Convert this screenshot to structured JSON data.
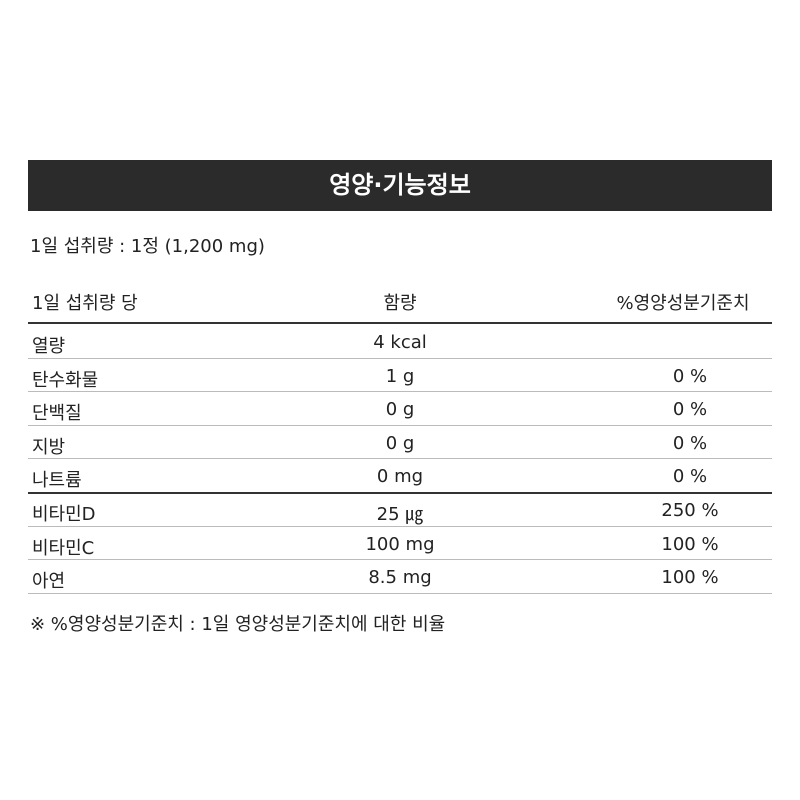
{
  "header": {
    "title": "영양·기능정보"
  },
  "serving": "1일 섭취량 : 1정 (1,200 mg)",
  "table": {
    "columns": [
      "1일 섭취량 당",
      "함량",
      "%영양성분기준치"
    ],
    "rows": [
      {
        "name": "열량",
        "amount": "4 kcal"
      },
      {
        "name": "탄수화물",
        "amount": "1 g",
        "percent": "0 %"
      },
      {
        "name": "단백질",
        "amount": "0 g",
        "percent": "0 %"
      },
      {
        "name": "지방",
        "amount": "0 g",
        "percent": "0 %"
      },
      {
        "name": "나트륨",
        "amount": "0 mg",
        "percent": "0 %"
      },
      {
        "name": "비타민D",
        "amount": "25 ㎍",
        "percent": "250 %"
      },
      {
        "name": "비타민C",
        "amount": "100 mg",
        "percent": "100 %"
      },
      {
        "name": "아연",
        "amount": "8.5 mg",
        "percent": "100 %"
      }
    ]
  },
  "footnote": "※ %영양성분기준치 : 1일 영양성분기준치에 대한 비율"
}
